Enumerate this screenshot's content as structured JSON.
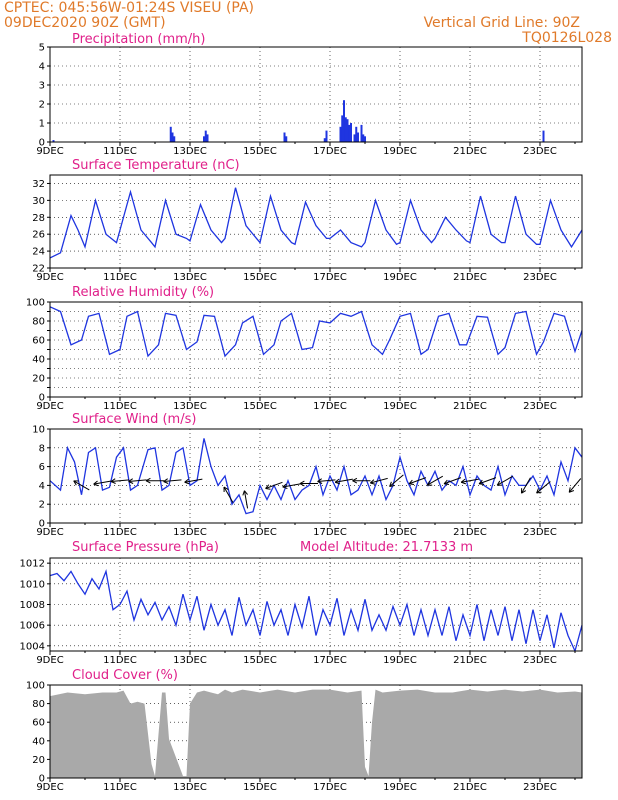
{
  "header": {
    "left_line1": "CPTEC:   045:56W-01:24S   VISEU (PA)",
    "left_line2": "09DEC2020 90Z (GMT)",
    "right_line1": "Vertical Grid Line: 90Z",
    "right_line2": "TQ0126L028"
  },
  "x_axis": {
    "ticks": [
      "9DEC",
      "11DEC",
      "13DEC",
      "15DEC",
      "17DEC",
      "19DEC",
      "21DEC",
      "23DEC"
    ],
    "tick_days": [
      9,
      11,
      13,
      15,
      17,
      19,
      21,
      23
    ],
    "range_days": [
      9,
      24.2
    ]
  },
  "chart_data": [
    {
      "id": "precip",
      "type": "bar",
      "title": "Precipitation (mm/h)",
      "ylim": [
        0,
        5
      ],
      "yticks": [
        0,
        1,
        2,
        3,
        4,
        5
      ],
      "grid": true,
      "x_days": [
        9.1,
        12.45,
        12.5,
        12.55,
        13.4,
        13.45,
        13.5,
        15.7,
        15.75,
        16.85,
        16.9,
        17.3,
        17.35,
        17.4,
        17.45,
        17.5,
        17.55,
        17.6,
        17.7,
        17.75,
        17.8,
        17.9,
        17.95,
        18.0,
        23.1
      ],
      "values": [
        0.1,
        0.8,
        0.5,
        0.3,
        0.3,
        0.6,
        0.4,
        0.5,
        0.3,
        0.2,
        0.6,
        0.8,
        1.4,
        2.2,
        1.3,
        1.2,
        0.9,
        1.0,
        0.4,
        0.8,
        0.5,
        0.9,
        0.4,
        0.3,
        0.6
      ]
    },
    {
      "id": "temp",
      "type": "line",
      "title": "Surface Temperature (nC)",
      "ylim": [
        22,
        33
      ],
      "yticks": [
        22,
        24,
        26,
        28,
        30,
        32
      ],
      "grid": true,
      "x_days": [
        9.0,
        9.3,
        9.6,
        9.8,
        10.0,
        10.3,
        10.6,
        10.9,
        11.0,
        11.3,
        11.6,
        11.9,
        12.0,
        12.3,
        12.6,
        12.9,
        13.0,
        13.3,
        13.6,
        13.9,
        14.0,
        14.3,
        14.6,
        14.9,
        15.0,
        15.3,
        15.6,
        15.9,
        16.0,
        16.3,
        16.6,
        16.9,
        17.0,
        17.3,
        17.6,
        17.9,
        18.0,
        18.3,
        18.6,
        18.9,
        19.0,
        19.3,
        19.6,
        19.9,
        20.0,
        20.3,
        20.6,
        20.9,
        21.0,
        21.3,
        21.6,
        21.9,
        22.0,
        22.3,
        22.6,
        22.9,
        23.0,
        23.3,
        23.6,
        23.9,
        24.2
      ],
      "values": [
        23.2,
        23.8,
        28.2,
        26.5,
        24.5,
        30.0,
        26.0,
        25.0,
        26.5,
        31.0,
        26.5,
        25.0,
        24.5,
        30.0,
        26.0,
        25.5,
        25.2,
        29.5,
        26.5,
        25.0,
        25.5,
        31.5,
        27.0,
        25.5,
        25.0,
        30.5,
        26.5,
        25.0,
        24.8,
        29.8,
        27.0,
        25.5,
        25.5,
        26.5,
        25.0,
        24.5,
        25.0,
        30.0,
        26.5,
        24.8,
        25.0,
        30.0,
        26.5,
        25.0,
        25.5,
        28.0,
        26.5,
        25.2,
        25.0,
        30.5,
        26.0,
        25.0,
        25.0,
        30.5,
        26.0,
        24.8,
        24.8,
        30.0,
        26.5,
        24.5,
        26.5
      ]
    },
    {
      "id": "rh",
      "type": "line",
      "title": "Relative Humidity (%)",
      "ylim": [
        0,
        100
      ],
      "yticks": [
        0,
        10,
        20,
        30,
        40,
        50,
        60,
        70,
        80,
        90,
        100
      ],
      "ytick_labels": [
        "0",
        "",
        "20",
        "",
        "40",
        "",
        "60",
        "",
        "80",
        "",
        "100"
      ],
      "grid": true,
      "x_days": [
        9.0,
        9.3,
        9.6,
        9.9,
        10.1,
        10.4,
        10.7,
        11.0,
        11.2,
        11.5,
        11.8,
        12.1,
        12.3,
        12.6,
        12.9,
        13.2,
        13.4,
        13.7,
        14.0,
        14.3,
        14.5,
        14.8,
        15.1,
        15.4,
        15.6,
        15.9,
        16.2,
        16.5,
        16.7,
        17.0,
        17.3,
        17.6,
        17.9,
        18.2,
        18.5,
        18.7,
        19.0,
        19.3,
        19.6,
        19.8,
        20.1,
        20.4,
        20.7,
        20.9,
        21.2,
        21.5,
        21.8,
        22.0,
        22.3,
        22.6,
        22.9,
        23.1,
        23.4,
        23.7,
        24.0,
        24.2
      ],
      "values": [
        95,
        90,
        55,
        60,
        85,
        88,
        45,
        50,
        85,
        90,
        43,
        55,
        88,
        86,
        50,
        58,
        86,
        85,
        43,
        55,
        78,
        85,
        45,
        55,
        80,
        88,
        50,
        52,
        80,
        78,
        88,
        85,
        90,
        55,
        45,
        60,
        85,
        88,
        45,
        50,
        85,
        88,
        55,
        55,
        85,
        84,
        45,
        52,
        88,
        90,
        45,
        58,
        88,
        85,
        48,
        70
      ]
    },
    {
      "id": "wind",
      "type": "line",
      "title": "Surface Wind (m/s)",
      "ylim": [
        0,
        10
      ],
      "yticks": [
        0,
        2,
        4,
        6,
        8,
        10
      ],
      "grid": true,
      "x_days": [
        9.0,
        9.3,
        9.5,
        9.7,
        9.9,
        10.1,
        10.3,
        10.5,
        10.7,
        10.9,
        11.1,
        11.3,
        11.5,
        11.8,
        12.0,
        12.2,
        12.4,
        12.6,
        12.8,
        13.0,
        13.2,
        13.4,
        13.6,
        13.8,
        14.0,
        14.2,
        14.4,
        14.6,
        14.8,
        15.0,
        15.2,
        15.4,
        15.6,
        15.8,
        16.0,
        16.2,
        16.4,
        16.6,
        16.8,
        17.0,
        17.2,
        17.4,
        17.6,
        17.8,
        18.0,
        18.2,
        18.4,
        18.6,
        18.8,
        19.0,
        19.2,
        19.4,
        19.6,
        19.8,
        20.0,
        20.2,
        20.4,
        20.6,
        20.8,
        21.0,
        21.2,
        21.4,
        21.6,
        21.8,
        22.0,
        22.2,
        22.4,
        22.6,
        22.8,
        23.0,
        23.2,
        23.4,
        23.6,
        23.8,
        24.0,
        24.2
      ],
      "values": [
        4.5,
        3.5,
        8.0,
        6.5,
        3.0,
        7.5,
        8.0,
        3.5,
        3.8,
        7.0,
        8.0,
        3.5,
        4.0,
        7.8,
        8.0,
        3.5,
        4.0,
        7.5,
        8.0,
        4.0,
        4.5,
        9.0,
        6.0,
        4.0,
        5.0,
        2.0,
        3.0,
        1.0,
        1.2,
        4.0,
        2.5,
        4.0,
        2.5,
        4.5,
        2.5,
        3.5,
        4.0,
        6.0,
        3.0,
        5.0,
        3.5,
        6.0,
        3.0,
        3.5,
        5.0,
        3.0,
        5.0,
        2.5,
        4.0,
        7.0,
        4.5,
        3.0,
        5.5,
        4.0,
        5.5,
        3.5,
        4.5,
        4.0,
        6.0,
        3.0,
        5.0,
        4.0,
        3.5,
        6.0,
        3.0,
        5.0,
        4.0,
        4.0,
        5.0,
        3.5,
        5.0,
        3.0,
        6.5,
        4.5,
        8.0,
        7.0
      ],
      "arrows": {
        "x_days": [
          9.9,
          10.5,
          11.0,
          11.5,
          12.0,
          12.5,
          13.1,
          14.1,
          14.6,
          15.4,
          15.9,
          16.4,
          16.9,
          17.4,
          17.9,
          18.4,
          18.9,
          19.5,
          20.0,
          20.5,
          21.0,
          21.5,
          22.0,
          22.6,
          23.1,
          24.0
        ],
        "speeds": [
          4.0,
          4.3,
          4.5,
          4.5,
          4.5,
          4.5,
          4.5,
          3.0,
          2.5,
          4.0,
          4.0,
          4.2,
          4.5,
          4.5,
          4.5,
          4.5,
          4.5,
          4.5,
          4.5,
          4.5,
          4.5,
          4.5,
          4.5,
          4.0,
          3.8,
          4.0
        ],
        "directions_deg": [
          300,
          260,
          265,
          265,
          270,
          265,
          260,
          330,
          350,
          250,
          260,
          270,
          265,
          260,
          270,
          255,
          230,
          250,
          240,
          250,
          260,
          250,
          240,
          210,
          230,
          220
        ]
      }
    },
    {
      "id": "pressure",
      "type": "line",
      "title": "Surface Pressure (hPa)",
      "extra_label": "Model Altitude: 21.7133 m",
      "ylim": [
        1003.5,
        1012.5
      ],
      "yticks": [
        1004,
        1006,
        1008,
        1010,
        1012
      ],
      "grid": true,
      "x_days": [
        9.0,
        9.2,
        9.4,
        9.6,
        9.8,
        10.0,
        10.2,
        10.4,
        10.6,
        10.8,
        11.0,
        11.2,
        11.4,
        11.6,
        11.8,
        12.0,
        12.2,
        12.4,
        12.6,
        12.8,
        13.0,
        13.2,
        13.4,
        13.6,
        13.8,
        14.0,
        14.2,
        14.4,
        14.6,
        14.8,
        15.0,
        15.2,
        15.4,
        15.6,
        15.8,
        16.0,
        16.2,
        16.4,
        16.6,
        16.8,
        17.0,
        17.2,
        17.4,
        17.6,
        17.8,
        18.0,
        18.2,
        18.4,
        18.6,
        18.8,
        19.0,
        19.2,
        19.4,
        19.6,
        19.8,
        20.0,
        20.2,
        20.4,
        20.6,
        20.8,
        21.0,
        21.2,
        21.4,
        21.6,
        21.8,
        22.0,
        22.2,
        22.4,
        22.6,
        22.8,
        23.0,
        23.2,
        23.4,
        23.6,
        23.8,
        24.0,
        24.2
      ],
      "values": [
        1010.8,
        1011.0,
        1010.3,
        1011.2,
        1010.0,
        1009.0,
        1010.5,
        1009.5,
        1011.2,
        1007.5,
        1008.0,
        1009.3,
        1006.5,
        1008.5,
        1007.0,
        1008.2,
        1006.5,
        1007.8,
        1006.0,
        1009.0,
        1006.5,
        1008.8,
        1005.5,
        1008.0,
        1006.0,
        1007.5,
        1005.0,
        1008.7,
        1006.0,
        1007.5,
        1005.0,
        1008.3,
        1006.0,
        1007.5,
        1005.0,
        1008.0,
        1005.8,
        1008.8,
        1005.0,
        1007.5,
        1006.0,
        1008.6,
        1005.0,
        1007.5,
        1005.5,
        1008.5,
        1005.5,
        1007.0,
        1005.5,
        1007.8,
        1006.0,
        1008.0,
        1005.0,
        1007.5,
        1005.0,
        1007.5,
        1005.0,
        1007.8,
        1004.5,
        1007.0,
        1005.0,
        1008.0,
        1004.5,
        1007.5,
        1005.0,
        1007.8,
        1004.5,
        1007.5,
        1004.2,
        1007.5,
        1004.5,
        1007.0,
        1003.8,
        1007.2,
        1005.0,
        1003.5,
        1006.0
      ]
    },
    {
      "id": "cloud",
      "type": "area",
      "title": "Cloud Cover (%)",
      "ylim": [
        0,
        100
      ],
      "yticks": [
        0,
        20,
        40,
        60,
        80,
        100
      ],
      "ytick_labels": [
        "0",
        "20",
        "40",
        "60",
        "80",
        "100"
      ],
      "grid": true,
      "x_days": [
        9.0,
        9.5,
        10.0,
        10.5,
        10.9,
        11.1,
        11.3,
        11.5,
        11.7,
        11.9,
        12.0,
        12.2,
        12.3,
        12.4,
        12.6,
        12.8,
        12.9,
        13.0,
        13.2,
        13.4,
        13.6,
        13.8,
        14.0,
        14.2,
        14.5,
        15.0,
        15.5,
        16.0,
        16.5,
        17.0,
        17.5,
        17.9,
        18.0,
        18.1,
        18.2,
        18.3,
        18.5,
        19.0,
        19.5,
        20.0,
        20.5,
        21.0,
        21.5,
        22.0,
        22.5,
        23.0,
        23.5,
        24.0,
        24.2
      ],
      "values": [
        88,
        92,
        90,
        92,
        92,
        94,
        80,
        82,
        80,
        15,
        2,
        92,
        92,
        42,
        22,
        2,
        2,
        80,
        92,
        94,
        92,
        90,
        95,
        92,
        95,
        92,
        95,
        92,
        95,
        95,
        92,
        94,
        12,
        2,
        60,
        95,
        92,
        94,
        95,
        92,
        92,
        95,
        93,
        95,
        93,
        95,
        92,
        93,
        92
      ]
    }
  ]
}
